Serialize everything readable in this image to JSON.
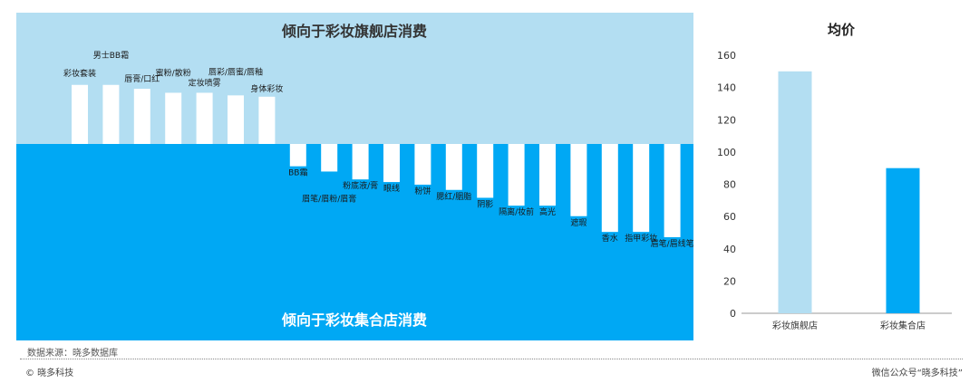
{
  "chart_data": [
    {
      "type": "bar",
      "title_top": "倾向于彩妆旗舰店消费",
      "title_bottom": "倾向于彩妆集合店消费",
      "colors": {
        "top_bg": "#b3def2",
        "bottom_bg": "#00a8f4",
        "bar": "#ffffff",
        "title": "#333333",
        "title_bottom": "#ffffff"
      },
      "categories": [
        "彩妆套装",
        "男士BB霜",
        "唇膏/口红",
        "蜜粉/散粉",
        "定妆喷雾",
        "唇彩/唇蜜/唇釉",
        "身体彩妆",
        "BB霜",
        "眉笔/眉粉/眉膏",
        "粉底液/膏",
        "眼线",
        "粉饼",
        "腮红/胭脂",
        "阴影",
        "隔离/妆前",
        "高光",
        "遮瑕",
        "香水",
        "指甲彩妆",
        "眉笔/眉线笔"
      ],
      "values": [
        0.45,
        0.45,
        0.42,
        0.39,
        0.39,
        0.37,
        0.36,
        -0.17,
        -0.21,
        -0.27,
        -0.29,
        -0.31,
        -0.35,
        -0.41,
        -0.47,
        -0.47,
        -0.55,
        -0.67,
        -0.67,
        -0.71
      ]
    },
    {
      "type": "bar",
      "title": "均价",
      "categories": [
        "彩妆旗舰店",
        "彩妆集合店"
      ],
      "values": [
        150,
        90
      ],
      "colors": [
        "#b3def2",
        "#00a8f4"
      ],
      "ylim": [
        0,
        160
      ],
      "yticks": [
        "0",
        "20",
        "40",
        "60",
        "80",
        "100",
        "120",
        "140",
        "160"
      ]
    }
  ],
  "footer": {
    "source": "数据来源：晓多数据库",
    "copyright": "© 晓多科技",
    "wechat": "微信公众号“晓多科技”"
  }
}
